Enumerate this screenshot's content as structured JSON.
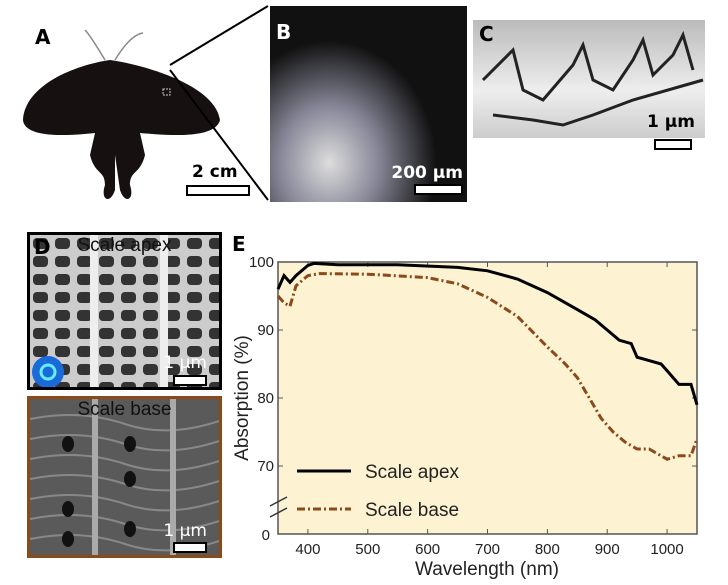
{
  "panels": {
    "A": {
      "label": "A",
      "scale": "2 cm"
    },
    "B": {
      "label": "B",
      "scale": "200 µm"
    },
    "C": {
      "label": "C",
      "scale": "1 µm"
    },
    "D": {
      "label": "D",
      "apex_title": "Scale apex",
      "apex_scale": "1 µm",
      "base_title": "Scale base",
      "base_scale": "1 µm"
    },
    "E": {
      "label": "E"
    }
  },
  "chart_data": {
    "type": "line",
    "xlabel": "Wavelength (nm)",
    "ylabel": "Absorption (%)",
    "xlim": [
      350,
      1050
    ],
    "ylim": [
      60,
      100
    ],
    "y_axis_break": true,
    "xticks": [
      400,
      500,
      600,
      700,
      800,
      900,
      1000
    ],
    "yticks": [
      70,
      80,
      90,
      100
    ],
    "ytick_zero_label": "0",
    "background": "#fdf3d2",
    "legend": "bottom-left",
    "series": [
      {
        "name": "Scale apex",
        "color": "#000000",
        "style": "solid",
        "x": [
          350,
          360,
          370,
          380,
          400,
          410,
          450,
          550,
          650,
          700,
          750,
          800,
          850,
          880,
          900,
          920,
          940,
          950,
          970,
          990,
          1000,
          1020,
          1040,
          1050
        ],
        "y": [
          96,
          98,
          97,
          98,
          99.5,
          99.8,
          99.6,
          99.6,
          99.2,
          98.7,
          97.5,
          95.5,
          93,
          91.5,
          90,
          88.5,
          88,
          86,
          85.5,
          85,
          84,
          82,
          82,
          79
        ]
      },
      {
        "name": "Scale base",
        "color": "#8b4a1c",
        "style": "dashdot",
        "x": [
          350,
          360,
          370,
          380,
          400,
          420,
          500,
          600,
          650,
          700,
          750,
          800,
          830,
          850,
          870,
          890,
          910,
          930,
          950,
          970,
          1000,
          1020,
          1040,
          1050
        ],
        "y": [
          95,
          94,
          93.5,
          96.5,
          98,
          98.3,
          98.2,
          97.7,
          96.8,
          94.8,
          92,
          87.5,
          85,
          83,
          80,
          77,
          75,
          73.5,
          72.5,
          72.5,
          71,
          71.5,
          71.5,
          74
        ]
      }
    ]
  }
}
